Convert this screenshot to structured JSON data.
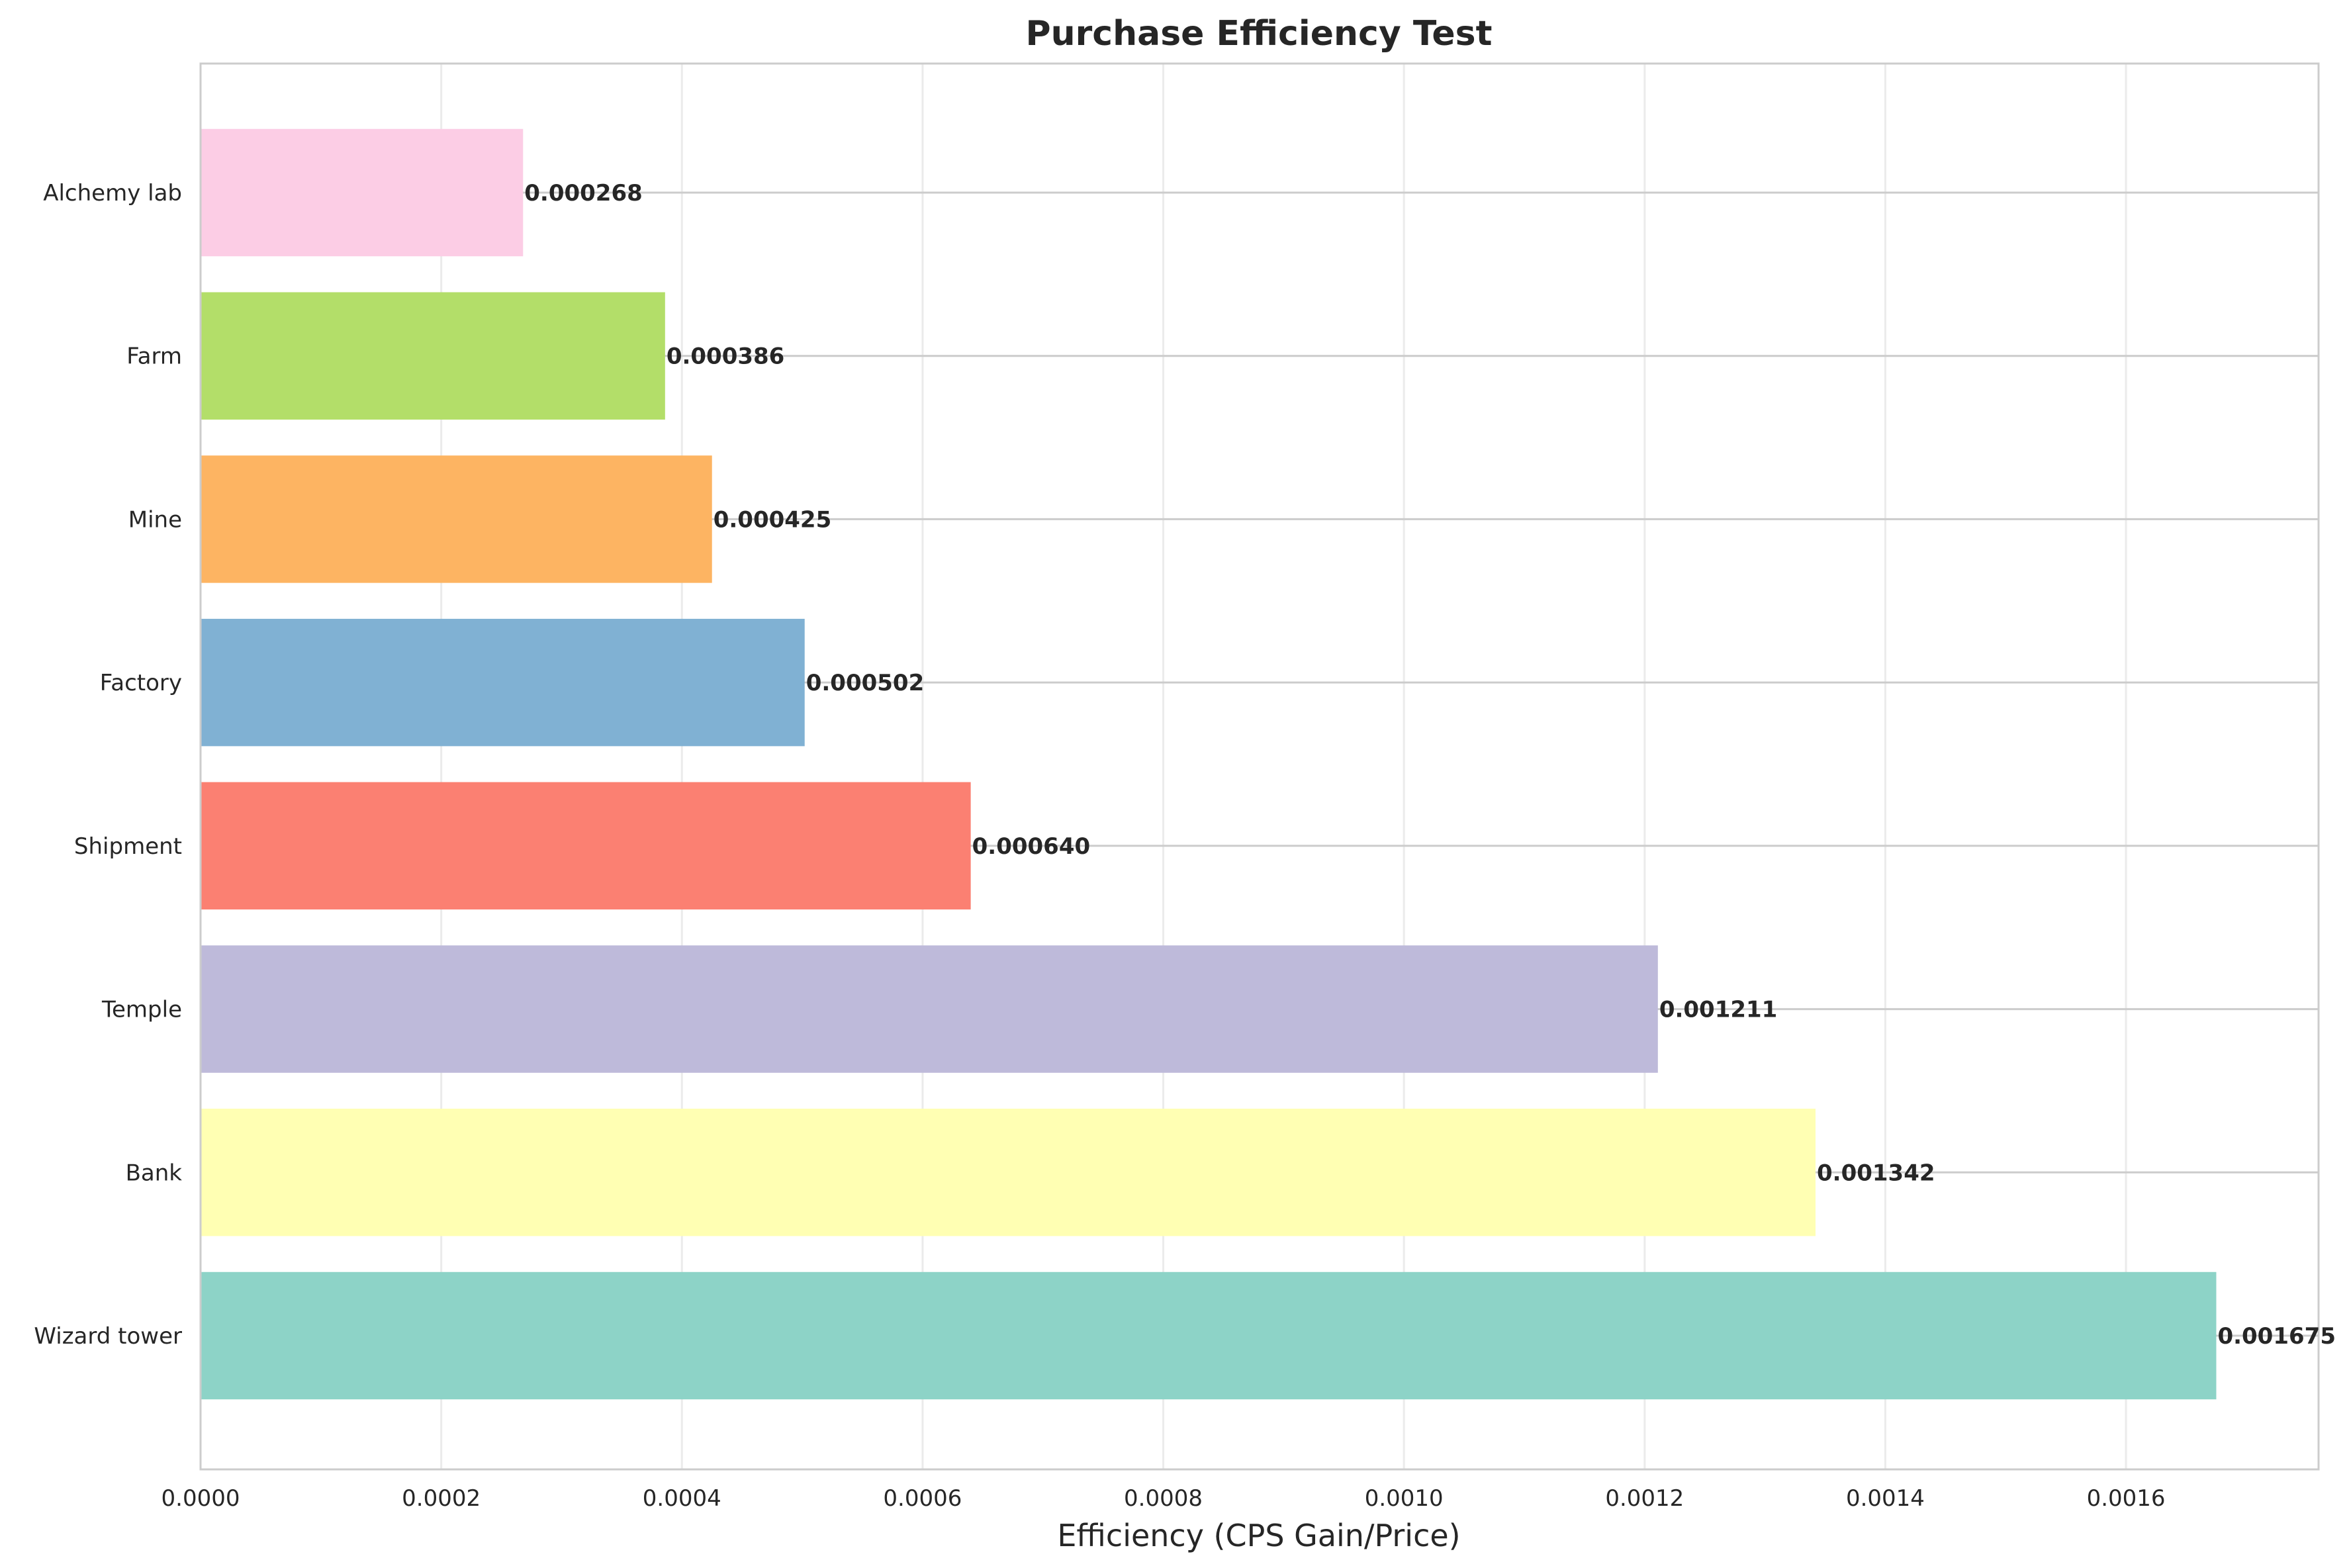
{
  "chart_data": {
    "type": "bar",
    "orientation": "horizontal",
    "title": "Purchase Efficiency Test",
    "xlabel": "Efficiency (CPS Gain/Price)",
    "ylabel": "",
    "categories": [
      "Wizard tower",
      "Bank",
      "Temple",
      "Shipment",
      "Factory",
      "Mine",
      "Farm",
      "Alchemy lab"
    ],
    "values": [
      0.001675,
      0.001342,
      0.001211,
      0.00064,
      0.000502,
      0.000425,
      0.000386,
      0.000268
    ],
    "data_labels": [
      "0.001675",
      "0.001342",
      "0.001211",
      "0.000640",
      "0.000502",
      "0.000425",
      "0.000386",
      "0.000268"
    ],
    "colors": [
      "#8dd3c7",
      "#ffffb3",
      "#bebada",
      "#fb8072",
      "#80b1d3",
      "#fdb462",
      "#b3de69",
      "#fccde5"
    ],
    "xlim": [
      0,
      0.00176
    ],
    "xticks": [
      0,
      0.0002,
      0.0004,
      0.0006,
      0.0008,
      0.001,
      0.0012,
      0.0014,
      0.0016
    ],
    "xtick_labels": [
      "0.0000",
      "0.0002",
      "0.0004",
      "0.0006",
      "0.0008",
      "0.0010",
      "0.0012",
      "0.0014",
      "0.0016"
    ],
    "grid": true
  }
}
